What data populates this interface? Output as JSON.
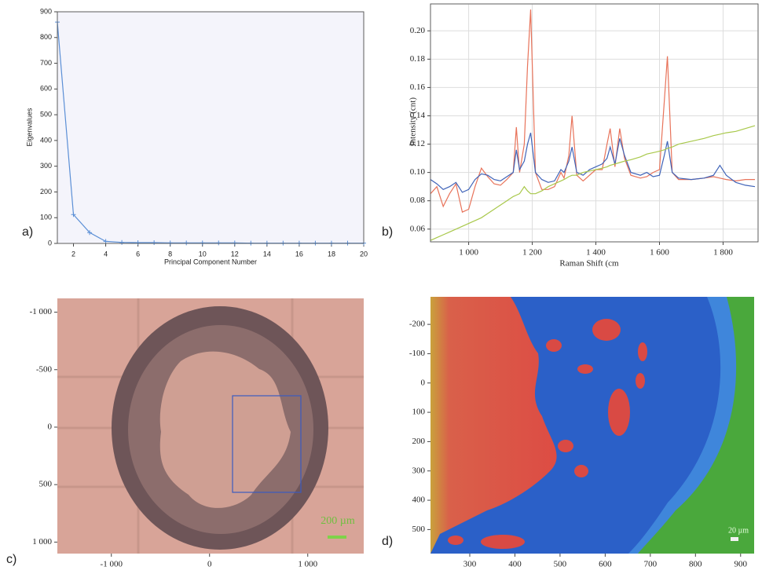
{
  "chart_data": [
    {
      "type": "line",
      "panel_label": "a)",
      "xlabel": "Principal Component Number",
      "ylabel": "Eigenvalues",
      "x": [
        1,
        2,
        3,
        4,
        5,
        6,
        7,
        8,
        9,
        10,
        11,
        12,
        13,
        14,
        15,
        16,
        17,
        18,
        19,
        20
      ],
      "series": [
        {
          "color": "#5b8fd6",
          "values": [
            860,
            112,
            42,
            8,
            4,
            3,
            3,
            2,
            2,
            2,
            2,
            2,
            1,
            1,
            1,
            1,
            1,
            1,
            1,
            1
          ]
        }
      ],
      "marker": "+",
      "grid": false,
      "xlim": [
        1,
        20
      ],
      "xticks": [
        2,
        4,
        6,
        8,
        10,
        12,
        14,
        16,
        18,
        20
      ],
      "ylim": [
        0,
        900
      ],
      "yticks": [
        0,
        100,
        200,
        300,
        400,
        500,
        600,
        700,
        800,
        900
      ]
    },
    {
      "type": "line",
      "panel_label": "b)",
      "xlabel": "Raman Shift (cm",
      "ylabel": "Intensity (cnt)",
      "x": [
        880,
        900,
        920,
        940,
        960,
        980,
        1000,
        1020,
        1040,
        1060,
        1080,
        1100,
        1120,
        1140,
        1150,
        1160,
        1175,
        1185,
        1195,
        1210,
        1230,
        1250,
        1270,
        1290,
        1300,
        1315,
        1325,
        1340,
        1360,
        1380,
        1400,
        1420,
        1435,
        1445,
        1460,
        1475,
        1490,
        1510,
        1540,
        1560,
        1580,
        1600,
        1615,
        1625,
        1640,
        1660,
        1700,
        1740,
        1770,
        1790,
        1810,
        1840,
        1870,
        1900
      ],
      "series": [
        {
          "color": "#e8735a",
          "values": [
            0.085,
            0.09,
            0.076,
            0.085,
            0.092,
            0.072,
            0.074,
            0.09,
            0.103,
            0.097,
            0.092,
            0.091,
            0.095,
            0.1,
            0.132,
            0.1,
            0.12,
            0.175,
            0.215,
            0.1,
            0.088,
            0.088,
            0.09,
            0.1,
            0.096,
            0.112,
            0.14,
            0.098,
            0.094,
            0.098,
            0.102,
            0.102,
            0.12,
            0.131,
            0.104,
            0.131,
            0.11,
            0.098,
            0.096,
            0.097,
            0.1,
            0.102,
            0.15,
            0.182,
            0.1,
            0.095,
            0.095,
            0.096,
            0.097,
            0.096,
            0.095,
            0.094,
            0.095,
            0.095
          ]
        },
        {
          "color": "#3f63b8",
          "values": [
            0.095,
            0.092,
            0.088,
            0.09,
            0.093,
            0.086,
            0.088,
            0.095,
            0.099,
            0.098,
            0.095,
            0.094,
            0.097,
            0.1,
            0.116,
            0.102,
            0.108,
            0.12,
            0.128,
            0.1,
            0.095,
            0.093,
            0.094,
            0.102,
            0.1,
            0.108,
            0.118,
            0.1,
            0.098,
            0.102,
            0.104,
            0.106,
            0.11,
            0.118,
            0.106,
            0.124,
            0.112,
            0.1,
            0.098,
            0.1,
            0.097,
            0.098,
            0.112,
            0.122,
            0.1,
            0.096,
            0.095,
            0.096,
            0.098,
            0.105,
            0.098,
            0.093,
            0.091,
            0.09
          ]
        },
        {
          "color": "#a8c84a",
          "values": [
            0.052,
            0.054,
            0.056,
            0.058,
            0.06,
            0.062,
            0.064,
            0.066,
            0.068,
            0.071,
            0.074,
            0.077,
            0.08,
            0.083,
            0.084,
            0.085,
            0.09,
            0.087,
            0.085,
            0.085,
            0.087,
            0.09,
            0.092,
            0.094,
            0.095,
            0.097,
            0.098,
            0.098,
            0.1,
            0.101,
            0.102,
            0.103,
            0.104,
            0.105,
            0.106,
            0.107,
            0.108,
            0.109,
            0.111,
            0.113,
            0.114,
            0.115,
            0.116,
            0.117,
            0.118,
            0.12,
            0.122,
            0.124,
            0.126,
            0.127,
            0.128,
            0.129,
            0.131,
            0.133
          ]
        }
      ],
      "grid": true,
      "xlim": [
        880,
        1910
      ],
      "xticks": [
        {
          "value": 1000,
          "label": "1 000"
        },
        {
          "value": 1200,
          "label": "1 200"
        },
        {
          "value": 1400,
          "label": "1 400"
        },
        {
          "value": 1600,
          "label": "1 600"
        },
        {
          "value": 1800,
          "label": "1 800"
        }
      ],
      "ylim": [
        0.051,
        0.219
      ],
      "yticks": [
        0.06,
        0.08,
        {
          "value": 0.1,
          "label": "0.10"
        },
        0.12,
        0.14,
        0.16,
        0.18,
        {
          "value": 0.2,
          "label": "0.20"
        }
      ]
    },
    {
      "type": "image",
      "panel_label": "c)",
      "scale_bar": "200 µm",
      "y_inverted": true,
      "xlim": [
        -1550,
        1570
      ],
      "xticks": [
        {
          "value": -1000,
          "label": "-1 000"
        },
        0,
        {
          "value": 1000,
          "label": "1 000"
        }
      ],
      "ylim": [
        -1120,
        1100
      ],
      "yticks": [
        {
          "value": -1000,
          "label": "-1 000"
        },
        -500,
        0,
        500,
        {
          "value": 1000,
          "label": "1 000"
        }
      ]
    },
    {
      "type": "image",
      "panel_label": "d)",
      "scale_bar": "20 µm",
      "y_inverted": true,
      "xlim": [
        213,
        930
      ],
      "xticks": [
        300,
        400,
        500,
        600,
        700,
        800,
        900
      ],
      "ylim": [
        -294,
        582
      ],
      "yticks": [
        -200,
        -100,
        0,
        100,
        200,
        300,
        400,
        500
      ]
    }
  ]
}
